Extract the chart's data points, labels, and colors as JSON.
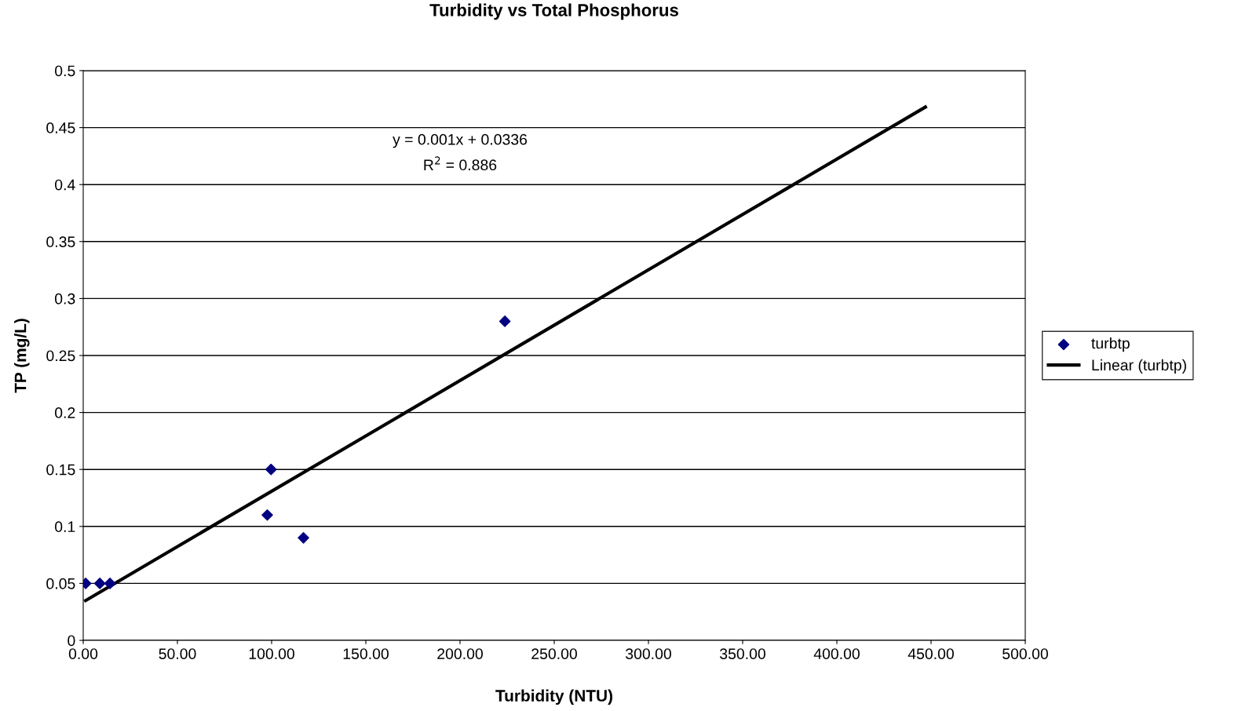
{
  "chart_data": {
    "type": "scatter",
    "title": "Turbidity vs Total Phosphorus",
    "xlabel": "Turbidity (NTU)",
    "ylabel": "TP (mg/L)",
    "annotations": [
      "y = 0.001x + 0.0336",
      "R$^{2}$ = 0.886"
    ],
    "series": [
      {
        "name": "turbtp",
        "color": "#000080",
        "marker": "diamond",
        "x": [
          1.3,
          8.8,
          14.2,
          97.7,
          99.7,
          116.9,
          223.8
        ],
        "values": [
          0.05,
          0.05,
          0.05,
          0.11,
          0.15,
          0.09,
          0.28
        ]
      },
      {
        "name": "Linear (turbtp)",
        "type": "line",
        "color": "#000000",
        "line_style": "solid",
        "x": [
          1.3,
          447
        ],
        "values": [
          0.035,
          0.468
        ]
      }
    ],
    "xlim": [
      0,
      500
    ],
    "xticks": [
      {
        "value": 0,
        "label": "0.00"
      },
      {
        "value": 50,
        "label": "50.00"
      },
      {
        "value": 100,
        "label": "100.00"
      },
      {
        "value": 150,
        "label": "150.00"
      },
      {
        "value": 200,
        "label": "200.00"
      },
      {
        "value": 250,
        "label": "250.00"
      },
      {
        "value": 300,
        "label": "300.00"
      },
      {
        "value": 350,
        "label": "350.00"
      },
      {
        "value": 400,
        "label": "400.00"
      },
      {
        "value": 450,
        "label": "450.00"
      },
      {
        "value": 500,
        "label": "500.00"
      }
    ],
    "ylim": [
      0,
      0.5
    ],
    "yticks": [
      0,
      0.05,
      0.1,
      0.15,
      0.2,
      0.25,
      0.3,
      0.35,
      0.4,
      0.45,
      0.5
    ],
    "grid": "y",
    "legend": "right"
  }
}
